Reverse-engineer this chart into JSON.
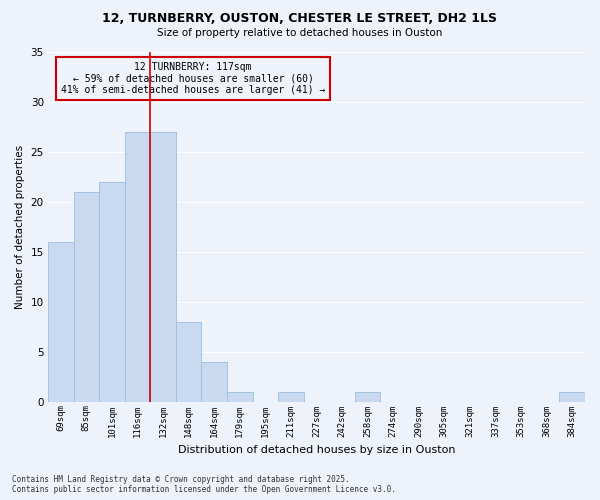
{
  "title_line1": "12, TURNBERRY, OUSTON, CHESTER LE STREET, DH2 1LS",
  "title_line2": "Size of property relative to detached houses in Ouston",
  "xlabel": "Distribution of detached houses by size in Ouston",
  "ylabel": "Number of detached properties",
  "categories": [
    "69sqm",
    "85sqm",
    "101sqm",
    "116sqm",
    "132sqm",
    "148sqm",
    "164sqm",
    "179sqm",
    "195sqm",
    "211sqm",
    "227sqm",
    "242sqm",
    "258sqm",
    "274sqm",
    "290sqm",
    "305sqm",
    "321sqm",
    "337sqm",
    "353sqm",
    "368sqm",
    "384sqm"
  ],
  "values": [
    16,
    21,
    22,
    27,
    27,
    8,
    4,
    1,
    0,
    1,
    0,
    0,
    1,
    0,
    0,
    0,
    0,
    0,
    0,
    0,
    1
  ],
  "bar_color": "#c9d9f0",
  "bar_edge_color": "#9bbde0",
  "background_color": "#eef2fb",
  "grid_color": "#ffffff",
  "vline_x": 3.5,
  "vline_color": "#cc0000",
  "annotation_text": "12 TURNBERRY: 117sqm\n← 59% of detached houses are smaller (60)\n41% of semi-detached houses are larger (41) →",
  "annotation_box_facecolor": "#eef2fb",
  "annotation_box_edgecolor": "#cc0000",
  "ylim": [
    0,
    35
  ],
  "yticks": [
    0,
    5,
    10,
    15,
    20,
    25,
    30,
    35
  ],
  "footer": "Contains HM Land Registry data © Crown copyright and database right 2025.\nContains public sector information licensed under the Open Government Licence v3.0."
}
